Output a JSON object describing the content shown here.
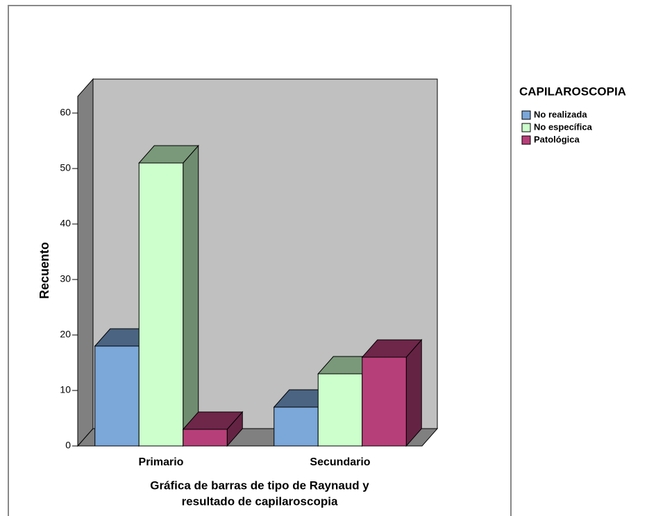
{
  "chart_data": {
    "type": "bar3d",
    "title_lines": [
      "Gráfica de barras de tipo de Raynaud y",
      "resultado de capilaroscopia"
    ],
    "ylabel": "Recuento",
    "categories": [
      "Primario",
      "Secundario"
    ],
    "legend_title": "CAPILAROSCOPIA",
    "series": [
      {
        "name": "No realizada",
        "color": "#7ba7d9",
        "values": [
          18,
          7
        ]
      },
      {
        "name": "No específica",
        "color": "#ccffcc",
        "values": [
          51,
          13
        ]
      },
      {
        "name": "Patológica",
        "color": "#b73f79",
        "values": [
          3,
          16
        ]
      }
    ],
    "ylim": [
      0,
      63
    ],
    "yticks": [
      0,
      10,
      20,
      30,
      40,
      50,
      60
    ],
    "legend": "right"
  }
}
